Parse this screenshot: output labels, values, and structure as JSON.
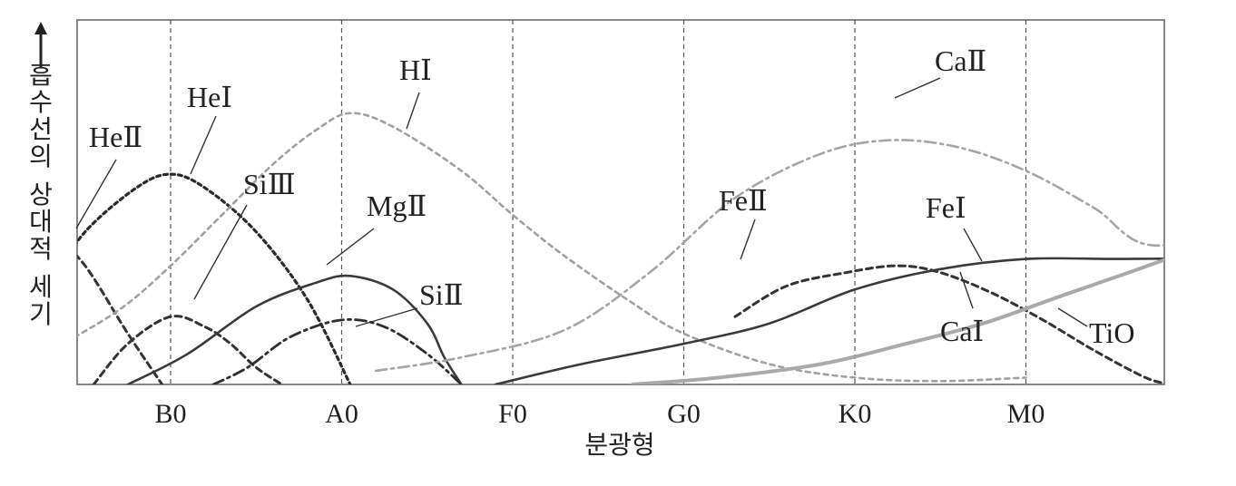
{
  "chart_data": {
    "type": "line",
    "xlabel": "분광형",
    "ylabel": "흡수선의 상대적 세기",
    "categories": [
      "B0",
      "A0",
      "F0",
      "G0",
      "K0",
      "M0"
    ],
    "xlim": [
      -0.7,
      6.8
    ],
    "ylim": [
      0,
      100
    ],
    "grid": "vertical-dashed",
    "series": [
      {
        "name": "HeⅡ",
        "style": "dashed-dark",
        "points": [
          [
            -0.7,
            45
          ],
          [
            -0.5,
            35
          ],
          [
            -0.25,
            15
          ],
          [
            -0.05,
            0
          ]
        ]
      },
      {
        "name": "HeⅠ",
        "style": "dotted-dark",
        "points": [
          [
            -0.7,
            30
          ],
          [
            -0.5,
            45
          ],
          [
            -0.2,
            58
          ],
          [
            0,
            62
          ],
          [
            0.2,
            58
          ],
          [
            0.5,
            45
          ],
          [
            0.8,
            25
          ],
          [
            1.05,
            0
          ]
        ]
      },
      {
        "name": "HⅠ",
        "style": "dotted-light",
        "points": [
          [
            -0.7,
            10
          ],
          [
            -0.3,
            22
          ],
          [
            0,
            35
          ],
          [
            0.3,
            50
          ],
          [
            0.6,
            65
          ],
          [
            0.85,
            75
          ],
          [
            1.05,
            80
          ],
          [
            1.3,
            76
          ],
          [
            1.7,
            63
          ],
          [
            2.0,
            50
          ],
          [
            2.3,
            38
          ],
          [
            2.7,
            24
          ],
          [
            3.0,
            15
          ],
          [
            3.5,
            6
          ],
          [
            4.0,
            2
          ],
          [
            4.5,
            1
          ],
          [
            5.0,
            2
          ]
        ]
      },
      {
        "name": "SiⅢ",
        "style": "dashed-dark",
        "points": [
          [
            -0.45,
            0
          ],
          [
            -0.25,
            12
          ],
          [
            0,
            20
          ],
          [
            0.2,
            17
          ],
          [
            0.35,
            12
          ],
          [
            0.5,
            5
          ],
          [
            0.65,
            0
          ]
        ]
      },
      {
        "name": "MgⅡ",
        "style": "solid-dark",
        "points": [
          [
            -0.25,
            0
          ],
          [
            0.1,
            9
          ],
          [
            0.5,
            23
          ],
          [
            0.85,
            30
          ],
          [
            1.05,
            32
          ],
          [
            1.3,
            28
          ],
          [
            1.5,
            18
          ],
          [
            1.6,
            8
          ],
          [
            1.7,
            0
          ]
        ]
      },
      {
        "name": "SiⅡ",
        "style": "dashdot-dark",
        "points": [
          [
            0.25,
            0
          ],
          [
            0.45,
            5
          ],
          [
            0.7,
            14
          ],
          [
            1.0,
            19
          ],
          [
            1.25,
            17
          ],
          [
            1.5,
            9
          ],
          [
            1.7,
            0
          ]
        ]
      },
      {
        "name": "CaⅡ",
        "style": "dashdot-light",
        "points": [
          [
            1.2,
            4
          ],
          [
            1.7,
            8
          ],
          [
            2.3,
            16
          ],
          [
            2.8,
            33
          ],
          [
            3.3,
            55
          ],
          [
            3.8,
            68
          ],
          [
            4.2,
            72
          ],
          [
            4.6,
            70
          ],
          [
            5.0,
            63
          ],
          [
            5.4,
            52
          ],
          [
            5.75,
            41
          ],
          [
            6.45,
            49
          ]
        ]
      },
      {
        "name": "FeⅡ",
        "style": "dashed-dark",
        "points": [
          [
            3.3,
            20
          ],
          [
            3.6,
            29
          ],
          [
            3.95,
            33
          ],
          [
            4.25,
            35
          ],
          [
            4.5,
            33
          ],
          [
            4.8,
            27
          ],
          [
            5.1,
            19
          ],
          [
            5.4,
            10
          ],
          [
            5.7,
            2
          ],
          [
            5.85,
            0
          ]
        ]
      },
      {
        "name": "FeⅠ",
        "style": "solid-dark",
        "points": [
          [
            1.9,
            0
          ],
          [
            2.4,
            6
          ],
          [
            3.0,
            12
          ],
          [
            3.5,
            18
          ],
          [
            4.0,
            28
          ],
          [
            4.5,
            34
          ],
          [
            5.0,
            37
          ],
          [
            5.5,
            37
          ],
          [
            5.9,
            37
          ],
          [
            6.2,
            36
          ],
          [
            6.55,
            33
          ]
        ]
      },
      {
        "name": "CaⅠ",
        "style": "solid-light",
        "points": [
          [
            2.7,
            0
          ],
          [
            3.2,
            2
          ],
          [
            3.8,
            6
          ],
          [
            4.3,
            12
          ],
          [
            4.75,
            18
          ],
          [
            5.2,
            26
          ],
          [
            5.6,
            33
          ],
          [
            5.9,
            38
          ],
          [
            6.2,
            40
          ],
          [
            6.55,
            41
          ]
        ]
      },
      {
        "name": "TiO",
        "style": "dashdot-dark",
        "points": [
          [
            5.85,
            0
          ],
          [
            6.0,
            6
          ],
          [
            6.15,
            18
          ],
          [
            6.3,
            34
          ],
          [
            6.45,
            45
          ]
        ]
      }
    ],
    "labels": [
      {
        "text": "HeⅡ",
        "series": "HeⅡ"
      },
      {
        "text": "HeⅠ",
        "series": "HeⅠ"
      },
      {
        "text": "HⅠ",
        "series": "HⅠ"
      },
      {
        "text": "SiⅢ",
        "series": "SiⅢ"
      },
      {
        "text": "MgⅡ",
        "series": "MgⅡ"
      },
      {
        "text": "SiⅡ",
        "series": "SiⅡ"
      },
      {
        "text": "CaⅡ",
        "series": "CaⅡ"
      },
      {
        "text": "FeⅡ",
        "series": "FeⅡ"
      },
      {
        "text": "FeⅠ",
        "series": "FeⅠ"
      },
      {
        "text": "CaⅠ",
        "series": "CaⅠ"
      },
      {
        "text": "TiO",
        "series": "TiO"
      }
    ]
  }
}
